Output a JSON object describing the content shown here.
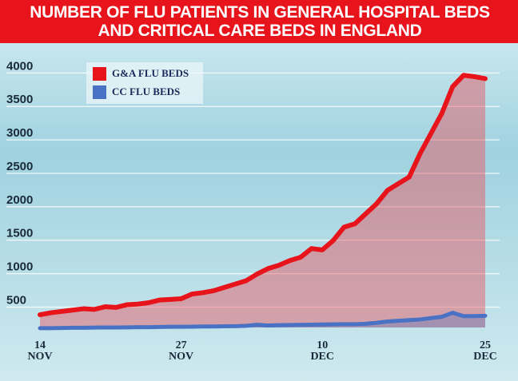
{
  "chart_data": {
    "type": "area",
    "title": "NUMBER OF FLU PATIENTS IN GENERAL HOSPITAL BEDS AND CRITICAL CARE BEDS IN ENGLAND",
    "categories": [
      "14 NOV",
      null,
      null,
      null,
      null,
      null,
      null,
      null,
      null,
      null,
      null,
      null,
      null,
      "27 NOV",
      null,
      null,
      null,
      null,
      null,
      null,
      null,
      null,
      null,
      null,
      null,
      null,
      "10 DEC",
      null,
      null,
      null,
      null,
      null,
      null,
      null,
      null,
      null,
      null,
      null,
      null,
      null,
      null,
      "25 DEC"
    ],
    "series": [
      {
        "name": "G&A FLU BEDS",
        "color": "#e8141c",
        "values": [
          290,
          320,
          340,
          360,
          380,
          370,
          410,
          400,
          440,
          450,
          470,
          510,
          520,
          530,
          600,
          620,
          650,
          700,
          750,
          800,
          900,
          980,
          1030,
          1100,
          1150,
          1280,
          1260,
          1400,
          1600,
          1650,
          1800,
          1950,
          2150,
          2250,
          2350,
          2700,
          3000,
          3300,
          3700,
          3870,
          3850,
          3820
        ]
      },
      {
        "name": "CC FLU BEDS",
        "color": "#4a72c4",
        "values": [
          90,
          90,
          92,
          95,
          95,
          98,
          100,
          100,
          102,
          105,
          105,
          108,
          110,
          110,
          112,
          115,
          115,
          118,
          120,
          125,
          140,
          130,
          135,
          138,
          140,
          142,
          145,
          148,
          150,
          150,
          155,
          170,
          190,
          200,
          210,
          220,
          240,
          260,
          320,
          270,
          270,
          275
        ]
      }
    ],
    "ylim": [
      100,
      4100
    ],
    "yticks": [
      500,
      1000,
      1500,
      2000,
      2500,
      3000,
      3500,
      4000
    ],
    "grid": true
  }
}
